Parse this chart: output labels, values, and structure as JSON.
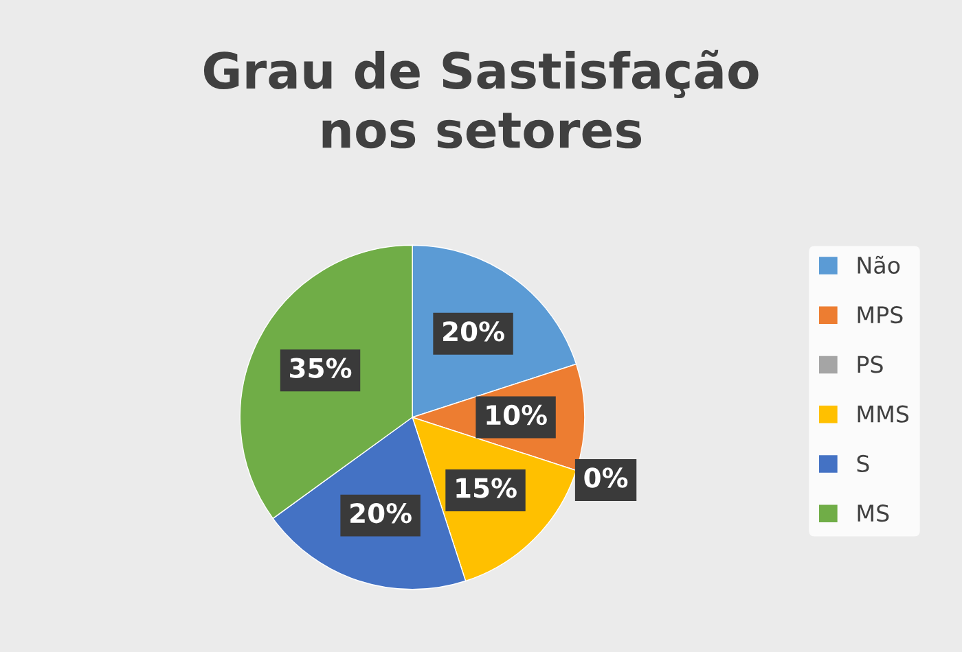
{
  "chart_data": {
    "type": "pie",
    "title": "Grau de Sastisfação nos setores",
    "categories": [
      "Não",
      "MPS",
      "PS",
      "MMS",
      "S",
      "MS"
    ],
    "values": [
      20,
      10,
      0,
      15,
      20,
      35
    ],
    "colors": [
      "#5b9bd5",
      "#ed7d31",
      "#a5a5a5",
      "#ffc000",
      "#4472c4",
      "#70ad47"
    ],
    "value_labels": [
      "20%",
      "10%",
      "0%",
      "15%",
      "20%",
      "35%"
    ],
    "legend": "right"
  }
}
